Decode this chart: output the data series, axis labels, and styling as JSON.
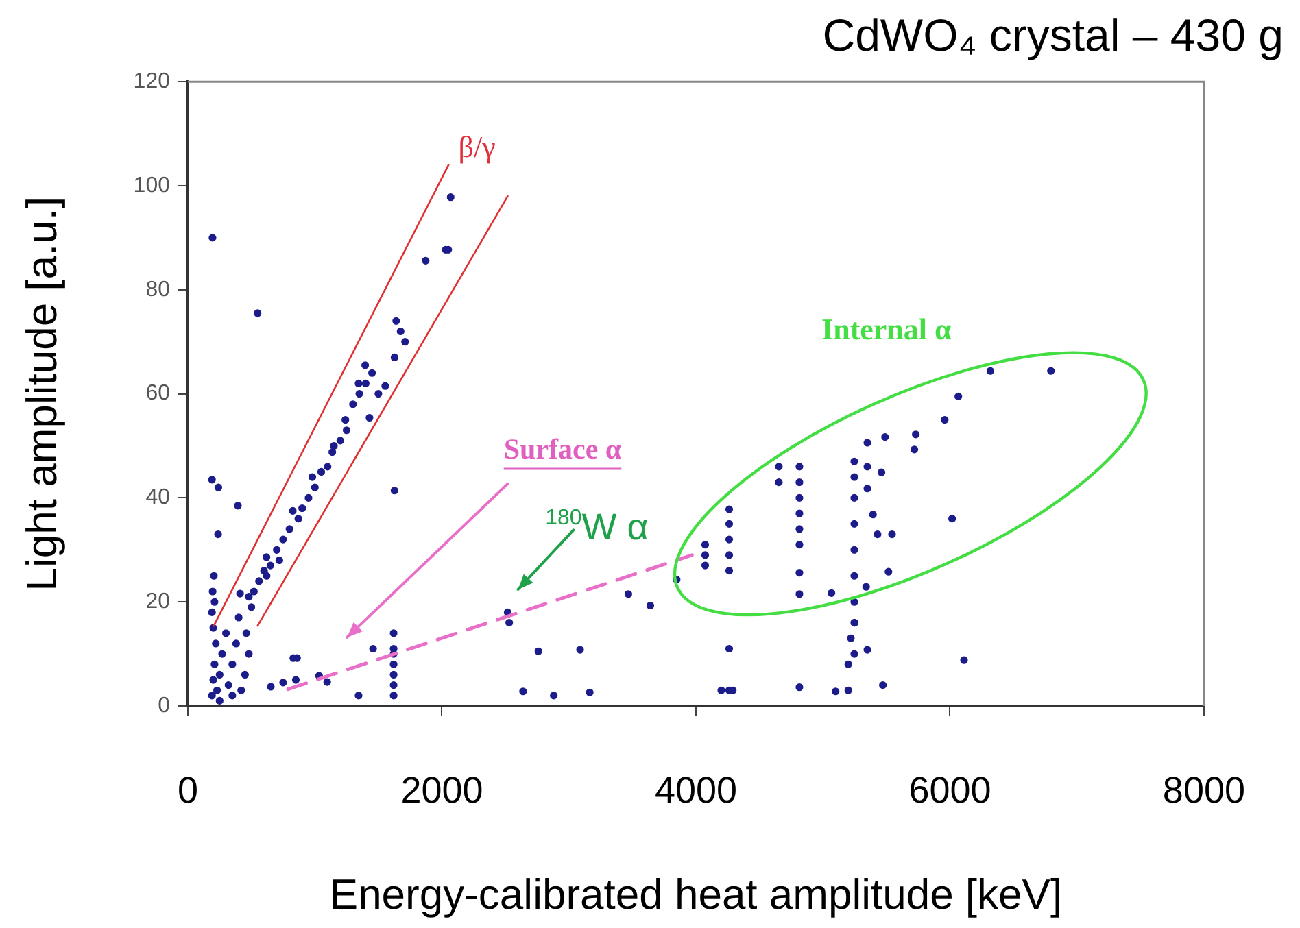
{
  "chart_data": {
    "type": "scatter",
    "title": "CdWO₄ crystal – 430 g",
    "xlabel": "Energy-calibrated heat amplitude [keV]",
    "ylabel": "Light amplitude [a.u.]",
    "xlim": [
      0,
      8000
    ],
    "xticks": [
      0,
      2000,
      4000,
      6000,
      8000
    ],
    "ylim": [
      0,
      120
    ],
    "yticks": [
      0,
      20,
      40,
      60,
      80,
      100,
      120
    ],
    "grid": false,
    "legend": false,
    "marker": "circle",
    "annotations": [
      "β/γ",
      "Surface α",
      "$^{180}$W α",
      "Internal α"
    ],
    "series": [
      {
        "color": "#1c1c8a",
        "x": [
          194,
          549,
          2069,
          2030,
          2050,
          1872,
          1640,
          1675,
          1710,
          1627,
          190,
          240,
          394,
          238,
          1627,
          1396,
          1344,
          1137,
          826,
          619,
          411,
          1554,
          1430,
          1240,
          190,
          200,
          210,
          220,
          200,
          190,
          230,
          250,
          270,
          300,
          320,
          350,
          380,
          400,
          420,
          450,
          480,
          500,
          210,
          195,
          205,
          250,
          350,
          460,
          520,
          560,
          600,
          650,
          700,
          750,
          800,
          900,
          950,
          1000,
          1050,
          1100,
          1200,
          1250,
          1300,
          1350,
          1400,
          1450,
          1500,
          1150,
          980,
          870,
          720,
          620,
          480,
          653,
          750,
          850,
          830,
          860,
          1033,
          1097,
          1344,
          1458,
          1620,
          1620,
          1620,
          1620,
          1620,
          1620,
          1620,
          2518,
          2530,
          2639,
          2760,
          2881,
          3088,
          3164,
          3468,
          3641,
          3848,
          4073,
          4073,
          4073,
          4262,
          4262,
          4262,
          4262,
          4262,
          4262,
          4262,
          4200,
          4290,
          4653,
          4653,
          4815,
          4815,
          4815,
          4815,
          4815,
          4815,
          4815,
          4815,
          4815,
          5247,
          5247,
          5247,
          5247,
          5247,
          5247,
          5247,
          5247,
          5247,
          5200,
          5200,
          5220,
          5250,
          5350,
          5350,
          5350,
          5461,
          5394,
          5430,
          5544,
          5516,
          5340,
          5067,
          5350,
          5472,
          5100,
          5489,
          5731,
          5720,
          5959,
          6066,
          6318,
          6795,
          6017,
          6111
        ],
        "values": [
          90,
          75.5,
          97.8,
          87.7,
          87.7,
          85.6,
          74,
          72,
          70,
          67,
          43.5,
          42,
          38.5,
          33,
          41.4,
          65.5,
          62,
          48.8,
          37.5,
          28.6,
          21.6,
          61.5,
          55.4,
          55,
          2,
          5,
          8,
          12,
          15,
          18,
          3,
          6,
          10,
          14,
          4,
          8,
          12,
          17,
          3,
          6,
          10,
          19,
          20,
          22,
          25,
          1,
          2,
          14,
          22,
          24,
          26,
          27,
          30,
          32,
          34,
          38,
          40,
          42,
          45,
          46,
          51,
          53,
          58,
          60,
          62,
          64,
          60,
          50,
          44,
          36,
          28,
          25,
          21,
          3.7,
          4.5,
          5,
          9.2,
          9.2,
          5.8,
          4.6,
          2,
          11,
          2,
          4,
          6,
          8,
          10,
          11,
          14,
          18,
          16,
          2.8,
          10.5,
          2,
          10.8,
          2.6,
          21.5,
          19.3,
          24.3,
          27,
          29,
          31,
          26,
          29,
          32,
          35,
          37.8,
          3,
          11,
          3,
          3,
          46,
          43,
          31,
          34,
          37,
          40,
          43,
          46,
          21.5,
          25.6,
          3.6,
          16,
          20,
          25,
          30,
          35,
          40,
          44,
          47,
          10,
          3,
          8,
          13,
          16,
          41.8,
          46,
          50.6,
          44.9,
          36.8,
          33,
          33,
          25.8,
          22.9,
          21.7,
          10.8,
          4,
          2.8,
          51.7,
          52.2,
          49.3,
          55,
          59.5,
          64.4,
          64.4,
          36,
          8.8
        ]
      }
    ]
  }
}
